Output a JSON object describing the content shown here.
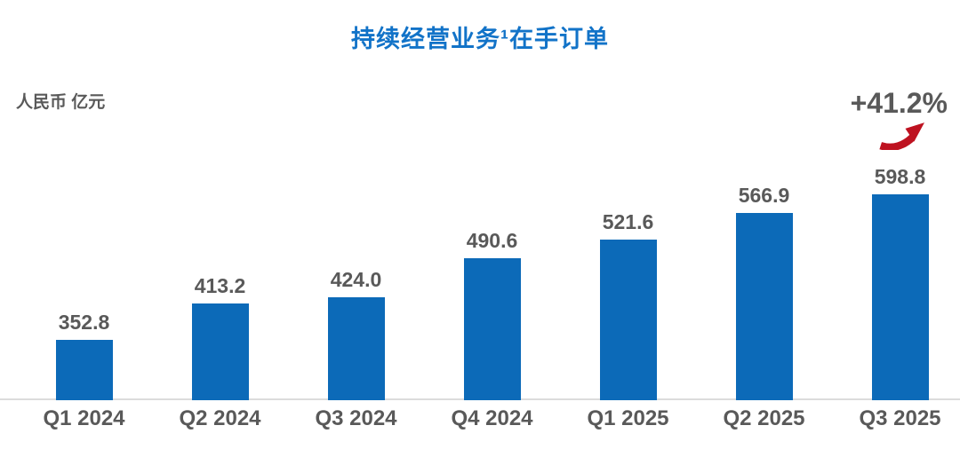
{
  "colors": {
    "bar": "#0C6AB8",
    "title_blue": "#1273C8",
    "label_gray": "#595959",
    "arrow_red": "#BE1220",
    "axis_line": "#DCDCDC"
  },
  "chart_data": {
    "type": "bar",
    "title": "持续经营业务¹在手订单",
    "title_footnote_marker": "1",
    "unit_label": "人民币 亿元",
    "growth_annotation": "+41.2%",
    "categories": [
      "Q1 2024",
      "Q2 2024",
      "Q3 2024",
      "Q4 2024",
      "Q1 2025",
      "Q2 2025",
      "Q3 2025"
    ],
    "values": [
      352.8,
      413.2,
      424.0,
      490.6,
      521.6,
      566.9,
      598.8
    ],
    "value_precision": 1,
    "ylabel": "",
    "xlabel": "",
    "ylim": [
      250,
      610
    ],
    "grid": false,
    "legend": false,
    "baseline_axis": "x"
  }
}
